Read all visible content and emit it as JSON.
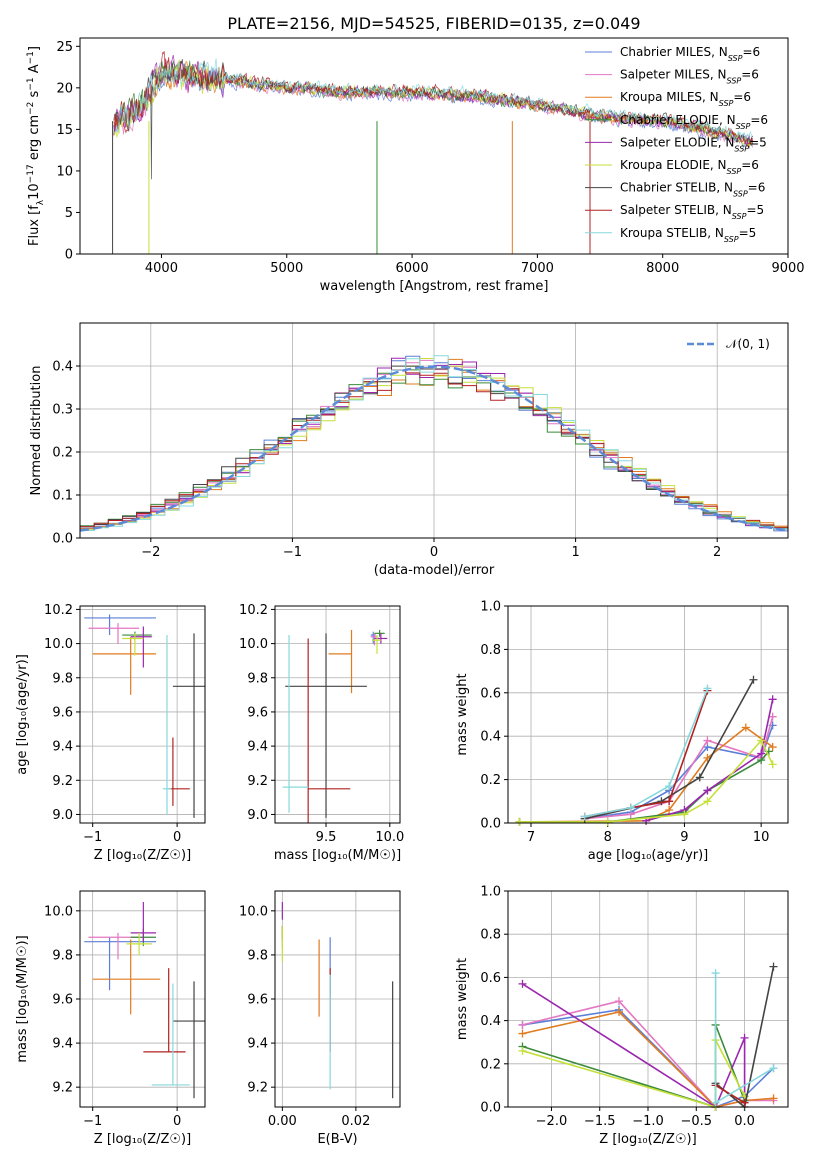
{
  "title": "PLATE=2156, MJD=54525, FIBERID=0135, z=0.049",
  "colors": {
    "Chabrier MILES": "#5b7fd6",
    "Salpeter MILES": "#e377c2",
    "Kroupa MILES": "#e07b20",
    "Chabrier ELODIE": "#3a8a3a",
    "Salpeter ELODIE": "#9b27af",
    "Kroupa ELODIE": "#c6e03a",
    "Chabrier STELIB": "#444444",
    "Salpeter STELIB": "#b22222",
    "Kroupa STELIB": "#86d8dc",
    "gauss": "#5b8bd6"
  },
  "chart_data": [
    {
      "id": "spectrum",
      "type": "line",
      "title": "PLATE=2156, MJD=54525, FIBERID=0135, z=0.049",
      "xlabel": "wavelength [Angstrom, rest frame]",
      "ylabel": "Flux [f_λ 10^-17 erg cm^-2 s^-1 A^-1]",
      "xlim": [
        3350,
        9000
      ],
      "ylim": [
        0,
        26
      ],
      "xticks": [
        "4000",
        "5000",
        "6000",
        "7000",
        "8000",
        "9000"
      ],
      "yticks": [
        "0",
        "5",
        "10",
        "15",
        "20",
        "25"
      ],
      "legend": [
        {
          "name": "Chabrier MILES",
          "nssp": "6"
        },
        {
          "name": "Salpeter MILES",
          "nssp": "6"
        },
        {
          "name": "Kroupa MILES",
          "nssp": "6"
        },
        {
          "name": "Chabrier ELODIE",
          "nssp": "6"
        },
        {
          "name": "Salpeter ELODIE",
          "nssp": "5"
        },
        {
          "name": "Kroupa ELODIE",
          "nssp": "6"
        },
        {
          "name": "Chabrier STELIB",
          "nssp": "6"
        },
        {
          "name": "Salpeter STELIB",
          "nssp": "5"
        },
        {
          "name": "Kroupa STELIB",
          "nssp": "5"
        }
      ],
      "legend_placement": "top-right",
      "grid": false,
      "continuum": {
        "x": [
          3600,
          3700,
          3850,
          4000,
          4200,
          4500,
          5000,
          5500,
          6000,
          6500,
          7000,
          7500,
          8000,
          8500,
          8700
        ],
        "y": [
          15,
          16.5,
          18,
          22,
          21.5,
          21,
          20,
          19.5,
          19.5,
          19,
          18,
          16.5,
          16,
          14.5,
          13.5
        ]
      }
    },
    {
      "id": "residuals",
      "type": "histogram",
      "xlabel": "(data-model)/error",
      "ylabel": "Normed distribution",
      "xlim": [
        -2.5,
        2.5
      ],
      "ylim": [
        0,
        0.5
      ],
      "xticks": [
        "−2",
        "−1",
        "0",
        "1",
        "2"
      ],
      "yticks": [
        "0.0",
        "0.1",
        "0.2",
        "0.3",
        "0.4"
      ],
      "legend": "𝒩(0, 1)",
      "legend_placement": "top-right",
      "grid": true,
      "bin_width": 0.1
    },
    {
      "id": "age-vs-Z",
      "type": "scatter",
      "xlabel": "Z [log₁₀(Z/Z☉)]",
      "ylabel": "age [log₁₀(age/yr)]",
      "xlim": [
        -1.15,
        0.33
      ],
      "ylim": [
        8.95,
        10.22
      ],
      "xticks": [
        "−1",
        "0"
      ],
      "yticks": [
        "9.0",
        "9.2",
        "9.4",
        "9.6",
        "9.8",
        "10.0",
        "10.2"
      ],
      "grid": true,
      "points": [
        {
          "series": "Chabrier MILES",
          "x": -0.8,
          "xerr": [
            0.3,
            0.55
          ],
          "y": 10.15,
          "yerr": [
            0.1,
            0.02
          ]
        },
        {
          "series": "Salpeter MILES",
          "x": -0.7,
          "xerr": [
            0.35,
            0.25
          ],
          "y": 10.09,
          "yerr": [
            0.09,
            0.03
          ]
        },
        {
          "series": "Kroupa MILES",
          "x": -0.55,
          "xerr": [
            0.45,
            0.3
          ],
          "y": 9.94,
          "yerr": [
            0.24,
            0.1
          ]
        },
        {
          "series": "Chabrier ELODIE",
          "x": -0.5,
          "xerr": [
            0.15,
            0.2
          ],
          "y": 10.05,
          "yerr": [
            0.03,
            0.02
          ]
        },
        {
          "series": "Salpeter ELODIE",
          "x": -0.4,
          "xerr": [
            0.15,
            0.1
          ],
          "y": 10.04,
          "yerr": [
            0.18,
            0.06
          ]
        },
        {
          "series": "Kroupa ELODIE",
          "x": -0.5,
          "xerr": [
            0.15,
            0.1
          ],
          "y": 10.03,
          "yerr": [
            0.1,
            0.03
          ]
        },
        {
          "series": "Chabrier STELIB",
          "x": 0.2,
          "xerr": [
            0.25,
            0.25
          ],
          "y": 9.75,
          "yerr": [
            0.77,
            0.31
          ]
        },
        {
          "series": "Salpeter STELIB",
          "x": -0.05,
          "xerr": [
            0.05,
            0.2
          ],
          "y": 9.15,
          "yerr": [
            0.1,
            0.3
          ]
        },
        {
          "series": "Kroupa STELIB",
          "x": -0.12,
          "xerr": [
            0.05,
            0.05
          ],
          "y": 9.15,
          "yerr": [
            0.15,
            0.9
          ]
        }
      ]
    },
    {
      "id": "age-vs-mass",
      "type": "scatter",
      "xlabel": "mass [log₁₀(M/M☉)]",
      "ylabel": "",
      "xlim": [
        9.1,
        10.08
      ],
      "ylim": [
        8.95,
        10.22
      ],
      "xticks": [
        "9.5",
        "10.0"
      ],
      "yticks": [
        "9.0",
        "9.2",
        "9.4",
        "9.6",
        "9.8",
        "10.0",
        "10.2"
      ],
      "grid": true,
      "points": [
        {
          "series": "Chabrier MILES",
          "x": 9.87,
          "xerr": [
            0.02,
            0.02
          ],
          "y": 10.05,
          "yerr": [
            0.05,
            0.02
          ]
        },
        {
          "series": "Salpeter MILES",
          "x": 9.88,
          "xerr": [
            0.03,
            0.02
          ],
          "y": 10.04,
          "yerr": [
            0.05,
            0.02
          ]
        },
        {
          "series": "Kroupa MILES",
          "x": 9.7,
          "xerr": [
            0.18,
            0.0
          ],
          "y": 9.94,
          "yerr": [
            0.23,
            0.14
          ]
        },
        {
          "series": "Chabrier ELODIE",
          "x": 9.92,
          "xerr": [
            0.04,
            0.04
          ],
          "y": 10.06,
          "yerr": [
            0.02,
            0.02
          ]
        },
        {
          "series": "Salpeter ELODIE",
          "x": 9.93,
          "xerr": [
            0.05,
            0.05
          ],
          "y": 10.03,
          "yerr": [
            0.03,
            0.03
          ]
        },
        {
          "series": "Kroupa ELODIE",
          "x": 9.9,
          "xerr": [
            0.04,
            0.03
          ],
          "y": 10.02,
          "yerr": [
            0.08,
            0.03
          ]
        },
        {
          "series": "Chabrier STELIB",
          "x": 9.5,
          "xerr": [
            0.32,
            0.32
          ],
          "y": 9.75,
          "yerr": [
            0.77,
            0.31
          ]
        },
        {
          "series": "Salpeter STELIB",
          "x": 9.36,
          "xerr": [
            0.0,
            0.33
          ],
          "y": 9.15,
          "yerr": [
            0.2,
            0.88
          ]
        },
        {
          "series": "Kroupa STELIB",
          "x": 9.21,
          "xerr": [
            0.05,
            0.15
          ],
          "y": 9.16,
          "yerr": [
            0.15,
            0.89
          ]
        }
      ]
    },
    {
      "id": "mass-weight-vs-age",
      "type": "line",
      "xlabel": "age [log₁₀(age/yr)]",
      "ylabel": "mass weight",
      "xlim": [
        6.7,
        10.35
      ],
      "ylim": [
        0,
        1
      ],
      "xticks": [
        "7",
        "8",
        "9",
        "10"
      ],
      "yticks": [
        "0.0",
        "0.2",
        "0.4",
        "0.6",
        "0.8",
        "1.0"
      ],
      "grid": true,
      "series": [
        {
          "name": "Chabrier MILES",
          "x": [
            7.7,
            8.3,
            8.8,
            9.3,
            10.0,
            10.15
          ],
          "y": [
            0.02,
            0.05,
            0.15,
            0.35,
            0.3,
            0.45
          ]
        },
        {
          "name": "Salpeter MILES",
          "x": [
            7.7,
            8.3,
            8.8,
            9.3,
            10.0,
            10.15
          ],
          "y": [
            0.02,
            0.04,
            0.1,
            0.38,
            0.3,
            0.49
          ]
        },
        {
          "name": "Kroupa MILES",
          "x": [
            6.85,
            8.5,
            8.8,
            9.3,
            9.8,
            10.15
          ],
          "y": [
            0.005,
            0.01,
            0.06,
            0.3,
            0.44,
            0.35
          ]
        },
        {
          "name": "Chabrier ELODIE",
          "x": [
            6.85,
            8.0,
            9.0,
            9.3,
            10.0,
            10.1
          ],
          "y": [
            0.005,
            0.005,
            0.05,
            0.15,
            0.29,
            0.33
          ]
        },
        {
          "name": "Salpeter ELODIE",
          "x": [
            8.5,
            9.0,
            9.3,
            10.0,
            10.15
          ],
          "y": [
            0.01,
            0.06,
            0.15,
            0.32,
            0.57
          ]
        },
        {
          "name": "Kroupa ELODIE",
          "x": [
            6.85,
            8.0,
            9.0,
            9.3,
            10.0,
            10.15
          ],
          "y": [
            0.005,
            0.005,
            0.04,
            0.1,
            0.38,
            0.27
          ]
        },
        {
          "name": "Chabrier STELIB",
          "x": [
            7.7,
            8.7,
            9.2,
            9.9
          ],
          "y": [
            0.02,
            0.1,
            0.21,
            0.66
          ]
        },
        {
          "name": "Salpeter STELIB",
          "x": [
            7.7,
            8.3,
            8.8,
            9.3
          ],
          "y": [
            0.03,
            0.07,
            0.1,
            0.61
          ]
        },
        {
          "name": "Kroupa STELIB",
          "x": [
            7.7,
            8.3,
            8.8,
            9.3
          ],
          "y": [
            0.03,
            0.07,
            0.17,
            0.62
          ]
        }
      ]
    },
    {
      "id": "mass-vs-Z",
      "type": "scatter",
      "xlabel": "Z [log₁₀(Z/Z☉)]",
      "ylabel": "mass [log₁₀(M/M☉)]",
      "xlim": [
        -1.15,
        0.33
      ],
      "ylim": [
        9.11,
        10.09
      ],
      "xticks": [
        "−1",
        "0"
      ],
      "yticks": [
        "9.2",
        "9.4",
        "9.6",
        "9.8",
        "10.0"
      ],
      "grid": true,
      "points": [
        {
          "series": "Chabrier MILES",
          "x": -0.8,
          "xerr": [
            0.3,
            0.55
          ],
          "y": 9.86,
          "yerr": [
            0.22,
            0.02
          ]
        },
        {
          "series": "Salpeter MILES",
          "x": -0.7,
          "xerr": [
            0.35,
            0.25
          ],
          "y": 9.88,
          "yerr": [
            0.1,
            0.02
          ]
        },
        {
          "series": "Kroupa MILES",
          "x": -0.55,
          "xerr": [
            0.45,
            0.35
          ],
          "y": 9.69,
          "yerr": [
            0.16,
            0.18
          ]
        },
        {
          "series": "Chabrier ELODIE",
          "x": -0.4,
          "xerr": [
            0.15,
            0.15
          ],
          "y": 9.88,
          "yerr": [
            0.04,
            0.04
          ]
        },
        {
          "series": "Salpeter ELODIE",
          "x": -0.4,
          "xerr": [
            0.15,
            0.15
          ],
          "y": 9.9,
          "yerr": [
            0.04,
            0.14
          ]
        },
        {
          "series": "Kroupa ELODIE",
          "x": -0.45,
          "xerr": [
            0.15,
            0.15
          ],
          "y": 9.85,
          "yerr": [
            0.05,
            0.05
          ]
        },
        {
          "series": "Chabrier STELIB",
          "x": 0.2,
          "xerr": [
            0.25,
            0.25
          ],
          "y": 9.5,
          "yerr": [
            0.35,
            0.18
          ]
        },
        {
          "series": "Salpeter STELIB",
          "x": -0.1,
          "xerr": [
            0.3,
            0.2
          ],
          "y": 9.36,
          "yerr": [
            0.0,
            0.38
          ]
        },
        {
          "series": "Kroupa STELIB",
          "x": -0.05,
          "xerr": [
            0.25,
            0.2
          ],
          "y": 9.21,
          "yerr": [
            0.0,
            0.46
          ]
        }
      ]
    },
    {
      "id": "mass-vs-ebv",
      "type": "scatter",
      "xlabel": "E(B-V)",
      "ylabel": "",
      "xlim": [
        -0.002,
        0.032
      ],
      "ylim": [
        9.11,
        10.09
      ],
      "xticks": [
        "0.00",
        "0.02"
      ],
      "yticks": [
        "9.2",
        "9.4",
        "9.6",
        "9.8",
        "10.0"
      ],
      "grid": true,
      "points": [
        {
          "series": "Chabrier MILES",
          "x": 0.013,
          "y": 9.86,
          "yerr": [
            0.24,
            0.02
          ]
        },
        {
          "series": "Salpeter MILES",
          "x": 0.0,
          "y": 9.88,
          "yerr": [
            0.05,
            0.05
          ]
        },
        {
          "series": "Kroupa MILES",
          "x": 0.01,
          "y": 9.69,
          "yerr": [
            0.17,
            0.18
          ]
        },
        {
          "series": "Chabrier ELODIE",
          "x": 0.0,
          "y": 9.9,
          "yerr": [
            0.03,
            0.03
          ]
        },
        {
          "series": "Salpeter ELODIE",
          "x": 0.0,
          "y": 10.0,
          "yerr": [
            0.04,
            0.04
          ]
        },
        {
          "series": "Kroupa ELODIE",
          "x": 0.0,
          "y": 9.85,
          "yerr": [
            0.08,
            0.08
          ]
        },
        {
          "series": "Chabrier STELIB",
          "x": 0.03,
          "y": 9.5,
          "yerr": [
            0.35,
            0.18
          ]
        },
        {
          "series": "Salpeter STELIB",
          "x": 0.013,
          "y": 9.36,
          "yerr": [
            0.0,
            0.38
          ]
        },
        {
          "series": "Kroupa STELIB",
          "x": 0.013,
          "y": 9.21,
          "yerr": [
            0.02,
            0.5
          ]
        }
      ]
    },
    {
      "id": "mass-weight-vs-Z",
      "type": "line",
      "xlabel": "Z [log₁₀(Z/Z☉)]",
      "ylabel": "mass weight",
      "xlim": [
        -2.45,
        0.45
      ],
      "ylim": [
        0,
        1
      ],
      "xticks": [
        "−2.0",
        "−1.5",
        "−1.0",
        "−0.5",
        "0.0"
      ],
      "yticks": [
        "0.0",
        "0.2",
        "0.4",
        "0.6",
        "0.8",
        "1.0"
      ],
      "grid": true,
      "series": [
        {
          "name": "Chabrier MILES",
          "x": [
            -2.3,
            -1.3,
            -0.3,
            0.0,
            0.3
          ],
          "y": [
            0.38,
            0.45,
            0.0,
            0.05,
            0.18
          ]
        },
        {
          "name": "Salpeter MILES",
          "x": [
            -2.3,
            -1.3,
            -0.3,
            0.0,
            0.3
          ],
          "y": [
            0.38,
            0.49,
            0.0,
            0.03,
            0.03
          ]
        },
        {
          "name": "Kroupa MILES",
          "x": [
            -2.3,
            -1.3,
            -0.3,
            0.0,
            0.3
          ],
          "y": [
            0.34,
            0.44,
            0.0,
            0.03,
            0.04
          ]
        },
        {
          "name": "Chabrier ELODIE",
          "x": [
            -2.3,
            -0.3,
            -0.3,
            0.0
          ],
          "y": [
            0.28,
            0.0,
            0.38,
            0.03
          ]
        },
        {
          "name": "Salpeter ELODIE",
          "x": [
            -2.3,
            -0.3,
            0.0,
            0.0
          ],
          "y": [
            0.57,
            0.0,
            0.32,
            0.05
          ]
        },
        {
          "name": "Kroupa ELODIE",
          "x": [
            -2.3,
            -0.3,
            -0.3,
            0.0
          ],
          "y": [
            0.26,
            0.0,
            0.31,
            0.05
          ]
        },
        {
          "name": "Chabrier STELIB",
          "x": [
            -0.3,
            0.0,
            0.3
          ],
          "y": [
            0.11,
            0.0,
            0.65
          ]
        },
        {
          "name": "Salpeter STELIB",
          "x": [
            -0.3,
            0.0
          ],
          "y": [
            0.1,
            0.02
          ]
        },
        {
          "name": "Kroupa STELIB",
          "x": [
            -0.3,
            -0.3,
            0.3
          ],
          "y": [
            0.62,
            0.02,
            0.18
          ]
        }
      ]
    }
  ]
}
